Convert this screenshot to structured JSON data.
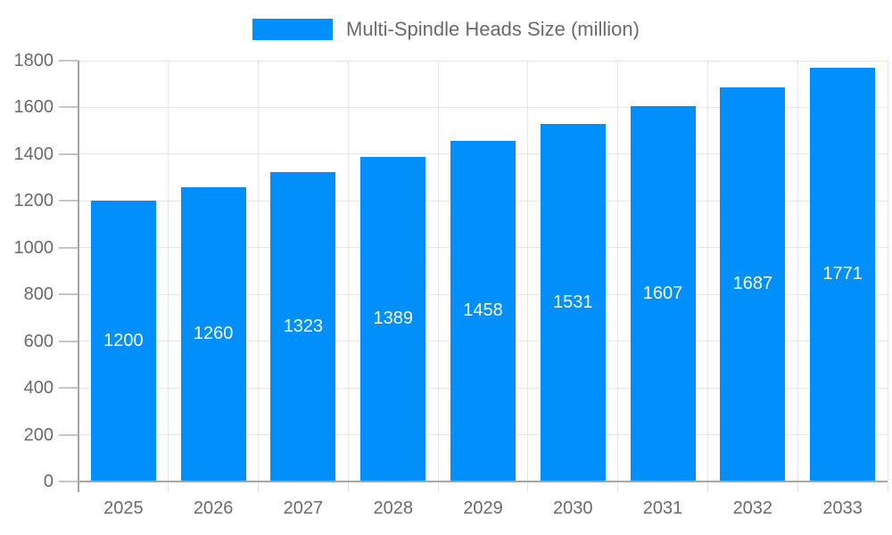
{
  "legend": {
    "label": "Multi-Spindle Heads Size (million)"
  },
  "colors": {
    "bar": "#008FFB",
    "grid": "#e7e7e7",
    "axis": "#a6a6a6",
    "tick": "#c6c6c6",
    "xtick": "#e2e2e2",
    "label_text": "#6b6b6b",
    "bar_label_text": "#ffffff",
    "background": "#ffffff"
  },
  "chart_data": {
    "type": "bar",
    "title": "Multi-Spindle Heads Size (million)",
    "categories": [
      "2025",
      "2026",
      "2027",
      "2028",
      "2029",
      "2030",
      "2031",
      "2032",
      "2033"
    ],
    "values": [
      1200,
      1260,
      1323,
      1389,
      1458,
      1531,
      1607,
      1687,
      1771
    ],
    "xlabel": "",
    "ylabel": "",
    "ylim": [
      0,
      1800
    ],
    "ytick_step": 200,
    "ytick_labels": [
      "0",
      "200",
      "400",
      "600",
      "800",
      "1000",
      "1200",
      "1400",
      "1600",
      "1800"
    ],
    "grid": true,
    "legend_position": "top",
    "bar_labels": true,
    "bar_label_position": "center"
  }
}
